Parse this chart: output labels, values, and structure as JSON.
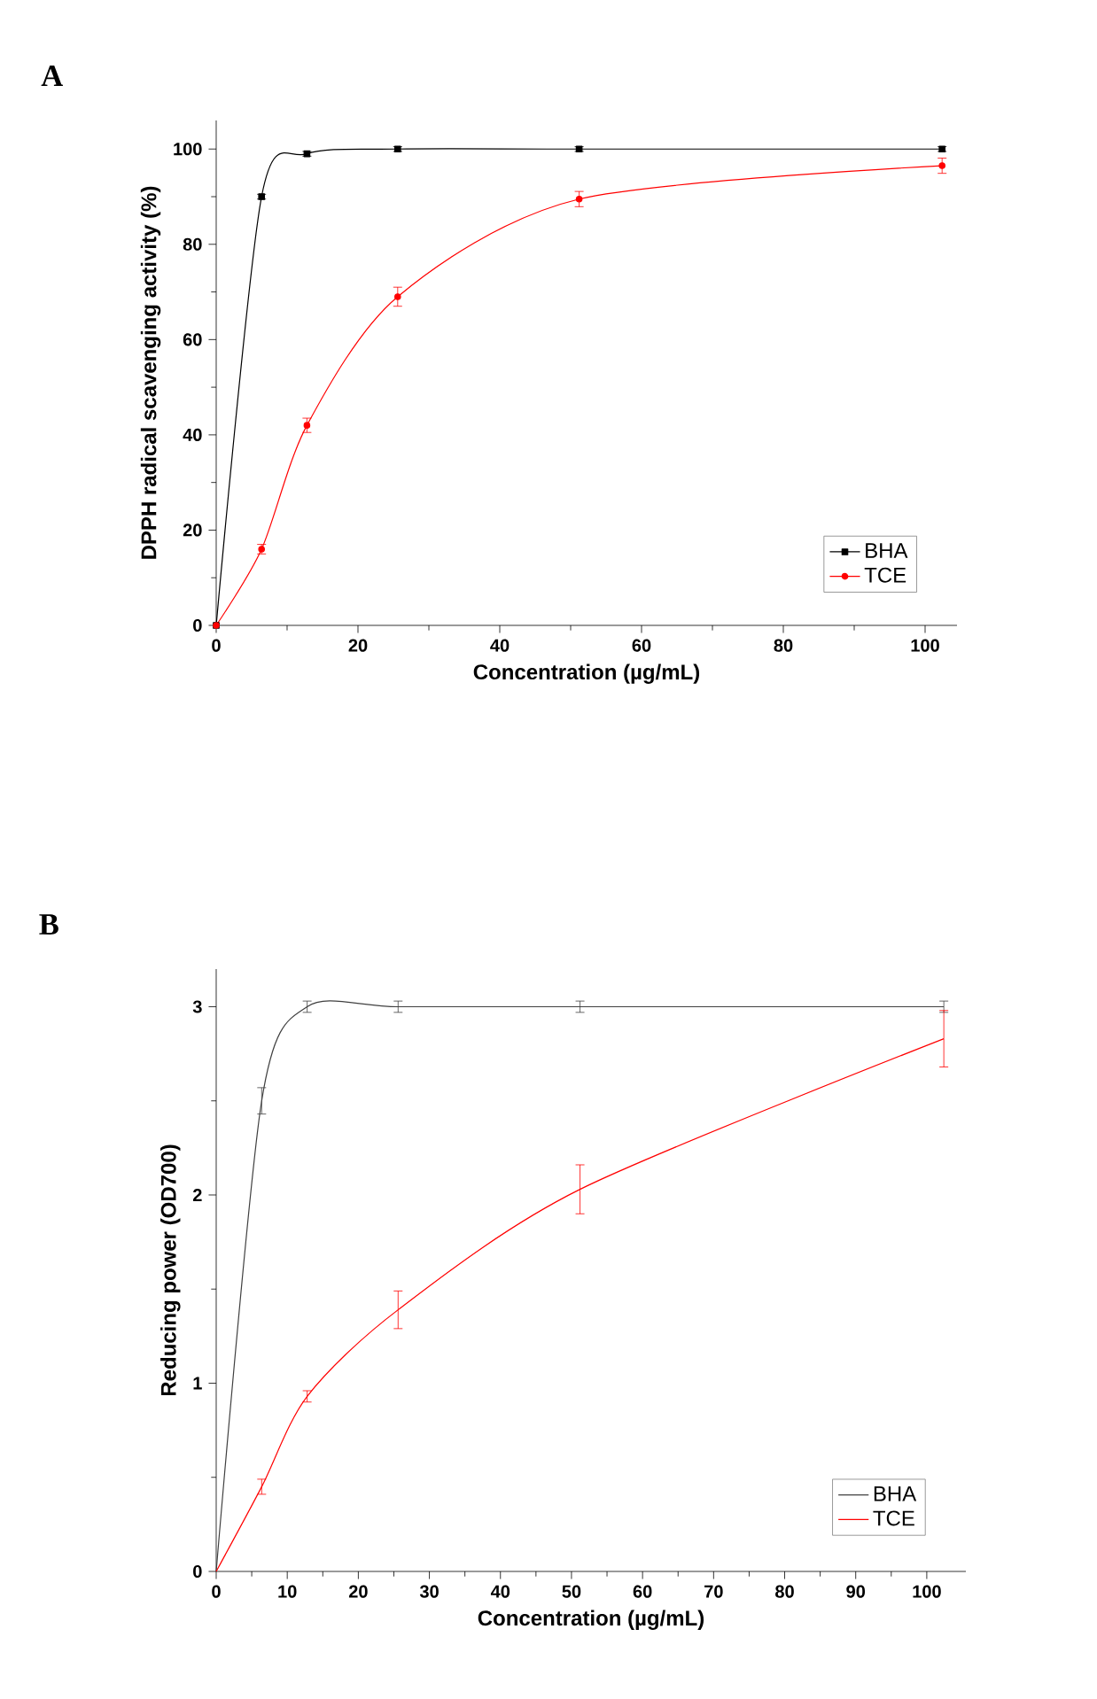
{
  "chart_data": [
    {
      "type": "line",
      "title": "A",
      "xlabel": "Concentration (µg/mL)",
      "ylabel": "DPPH  radical scavenging activity (%)",
      "x": [
        0,
        6.4,
        12.8,
        25.6,
        51.2,
        102.4
      ],
      "series": [
        {
          "name": "BHA",
          "color": "#000000",
          "marker": "square",
          "values": [
            0,
            90,
            99,
            100,
            100,
            100
          ],
          "errors": [
            null,
            0.5,
            0.5,
            0.5,
            0.5,
            0.5
          ]
        },
        {
          "name": "TCE",
          "color": "#ff0000",
          "marker": "circle",
          "values": [
            0,
            16,
            42,
            69,
            89.5,
            96.5
          ],
          "errors": [
            null,
            1,
            1.5,
            2,
            1.6,
            1.6
          ]
        }
      ],
      "xlim": [
        0,
        104.5
      ],
      "xticks": [
        0,
        20,
        40,
        60,
        80,
        100
      ],
      "ylim": [
        0,
        106
      ],
      "yticks": [
        0,
        20,
        40,
        60,
        80,
        100
      ],
      "legend": "bottom right"
    },
    {
      "type": "line",
      "title": "B",
      "xlabel": "Concentration (µg/mL)",
      "ylabel": "Reducing power (OD700)",
      "x": [
        0,
        6.4,
        12.8,
        25.6,
        51.2,
        102.4
      ],
      "series": [
        {
          "name": "BHA",
          "color": "#404040",
          "values": [
            0,
            2.5,
            3,
            3,
            3,
            3
          ],
          "errors": [
            null,
            0.07,
            0.03,
            0.03,
            0.03,
            0.03
          ]
        },
        {
          "name": "TCE",
          "color": "#ff0000",
          "values": [
            0,
            0.45,
            0.93,
            1.39,
            2.03,
            2.83
          ],
          "errors": [
            null,
            0.04,
            0.03,
            0.1,
            0.13,
            0.15
          ]
        }
      ],
      "xlim": [
        0,
        105.5
      ],
      "xticks": [
        0,
        10,
        20,
        30,
        40,
        50,
        60,
        70,
        80,
        90,
        100
      ],
      "ylim": [
        0,
        3.2
      ],
      "yticks": [
        0,
        1,
        2,
        3
      ],
      "legend": "bottom right"
    }
  ]
}
